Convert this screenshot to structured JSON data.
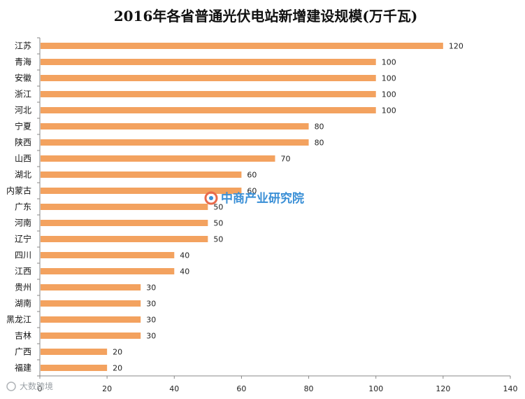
{
  "chart_data": {
    "type": "bar",
    "orientation": "horizontal",
    "title": "2016年各省普通光伏电站新增建设规模(万千瓦)",
    "categories": [
      "江苏",
      "青海",
      "安徽",
      "浙江",
      "河北",
      "宁夏",
      "陕西",
      "山西",
      "湖北",
      "内蒙古",
      "广东",
      "河南",
      "辽宁",
      "四川",
      "江西",
      "贵州",
      "湖南",
      "黑龙江",
      "吉林",
      "广西",
      "福建"
    ],
    "values": [
      120,
      100,
      100,
      100,
      100,
      80,
      80,
      70,
      60,
      60,
      50,
      50,
      50,
      40,
      40,
      30,
      30,
      30,
      30,
      20,
      20
    ],
    "xlim": [
      0,
      140
    ],
    "xticks": [
      0,
      20,
      40,
      60,
      80,
      100,
      120,
      140
    ],
    "bar_color": "#f3a25f",
    "grid": false,
    "legend": "none"
  },
  "watermark": {
    "text": "中商产业研究院",
    "color": "#3a8fd6"
  },
  "corner_watermark": {
    "text": "大数跨境"
  }
}
